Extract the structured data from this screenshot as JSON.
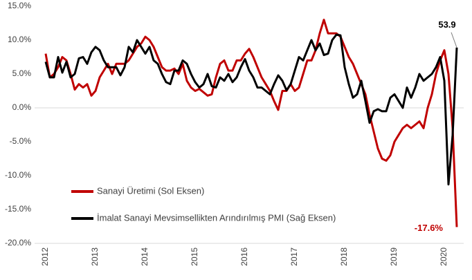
{
  "chart_data": {
    "type": "line",
    "categories": [
      "2012",
      null,
      null,
      null,
      null,
      null,
      null,
      null,
      null,
      null,
      null,
      null,
      "2013",
      null,
      null,
      null,
      null,
      null,
      null,
      null,
      null,
      null,
      null,
      null,
      "2014",
      null,
      null,
      null,
      null,
      null,
      null,
      null,
      null,
      null,
      null,
      null,
      "2015",
      null,
      null,
      null,
      null,
      null,
      null,
      null,
      null,
      null,
      null,
      null,
      "2016",
      null,
      null,
      null,
      null,
      null,
      null,
      null,
      null,
      null,
      null,
      null,
      "2017",
      null,
      null,
      null,
      null,
      null,
      null,
      null,
      null,
      null,
      null,
      null,
      "2018",
      null,
      null,
      null,
      null,
      null,
      null,
      null,
      null,
      null,
      null,
      null,
      "2019",
      null,
      null,
      null,
      null,
      null,
      null,
      null,
      null,
      null,
      null,
      null,
      "2020",
      null,
      null,
      null
    ],
    "series": [
      {
        "name": "Sanayi Üretimi (Sol Eksen)",
        "color": "#c00000",
        "values": [
          8,
          4.5,
          5,
          6,
          7.5,
          7,
          5,
          2.7,
          3.5,
          3,
          3.5,
          1.8,
          2.5,
          4.5,
          5.5,
          6.5,
          5,
          6.5,
          6.5,
          6.5,
          7,
          8,
          9,
          9.5,
          10.5,
          10,
          9,
          7.5,
          6,
          5.5,
          5.5,
          5.8,
          5,
          6.5,
          4,
          3,
          2.5,
          2.8,
          2.3,
          1.8,
          2,
          4.5,
          6.5,
          7,
          5.5,
          5.5,
          7,
          7,
          8,
          8.7,
          7.5,
          6,
          4.5,
          3.5,
          2.5,
          1,
          -0.3,
          2.5,
          2.5,
          3.5,
          2.5,
          3,
          5,
          7,
          7,
          8.5,
          11,
          13,
          11,
          11,
          11,
          10.5,
          9,
          7.5,
          6.5,
          5,
          3.5,
          2,
          -1,
          -3.5,
          -6,
          -7.5,
          -7.8,
          -7,
          -5,
          -4,
          -3,
          -2.5,
          -3,
          -2.5,
          -2,
          -3,
          0,
          2,
          5,
          7,
          8.5,
          5,
          -3,
          -17.6
        ],
        "value_labels": [
          null,
          null,
          null,
          null,
          null,
          null,
          null,
          null,
          null,
          null,
          null,
          null,
          null,
          null,
          null,
          null,
          null,
          null,
          null,
          null,
          null,
          null,
          null,
          null,
          null,
          null,
          null,
          null,
          null,
          null,
          null,
          null,
          null,
          null,
          null,
          null,
          null,
          null,
          null,
          null,
          null,
          null,
          null,
          null,
          null,
          null,
          null,
          null,
          null,
          null,
          null,
          null,
          null,
          null,
          null,
          null,
          null,
          null,
          null,
          null,
          null,
          null,
          null,
          null,
          null,
          null,
          null,
          null,
          null,
          null,
          null,
          null,
          null,
          null,
          null,
          null,
          null,
          null,
          null,
          null,
          null,
          null,
          null,
          null,
          null,
          null,
          null,
          null,
          null,
          null,
          null,
          null,
          null,
          null,
          null,
          null,
          null,
          null,
          null,
          "-17.6%"
        ]
      },
      {
        "name": "İmalat Sanayi Mevsimsellikten Arındırılmış PMI (Sağ Eksen)",
        "color": "#000000",
        "axis": "y2",
        "values": [
          51.8,
          49.5,
          49.5,
          52.5,
          50.2,
          51.8,
          49.5,
          50,
          52.3,
          52.5,
          51.5,
          53.2,
          54,
          53.5,
          52,
          51,
          51,
          51,
          49.8,
          51,
          54,
          53.2,
          55,
          54,
          53,
          54,
          52,
          51.5,
          50,
          48.8,
          48.5,
          50.5,
          50.5,
          52,
          51.5,
          50,
          48.8,
          48,
          48.5,
          50,
          48.2,
          48,
          49.5,
          49,
          50,
          48.8,
          49.5,
          51,
          52.2,
          50.5,
          49.5,
          48,
          48,
          47.5,
          47,
          48.5,
          49.8,
          49,
          47.6,
          48.5,
          50.5,
          52.5,
          52,
          53.5,
          55,
          53.5,
          54.5,
          52.8,
          53,
          55,
          55.8,
          55.7,
          51,
          48.5,
          46.5,
          47,
          49,
          46,
          42.8,
          44.5,
          44.8,
          44.5,
          44.5,
          46.5,
          47,
          46,
          45,
          48,
          46.5,
          48,
          50,
          49,
          49.5,
          50,
          51,
          52.5,
          49,
          33.7,
          41,
          53.9
        ]
      }
    ],
    "ylim": [
      -20,
      15
    ],
    "yticks": [
      {
        "value": 15,
        "label": "15.0%"
      },
      {
        "value": 10,
        "label": "10.0%"
      },
      {
        "value": 5,
        "label": "5.0%"
      },
      {
        "value": 0,
        "label": "0.0%"
      },
      {
        "value": -5,
        "label": "-5.0%"
      },
      {
        "value": -10,
        "label": "-10.0%"
      },
      {
        "value": -15,
        "label": "-15.0%"
      },
      {
        "value": -20,
        "label": "-20.0%"
      }
    ],
    "y2lim": [
      25,
      60
    ],
    "legend": "lower left"
  }
}
